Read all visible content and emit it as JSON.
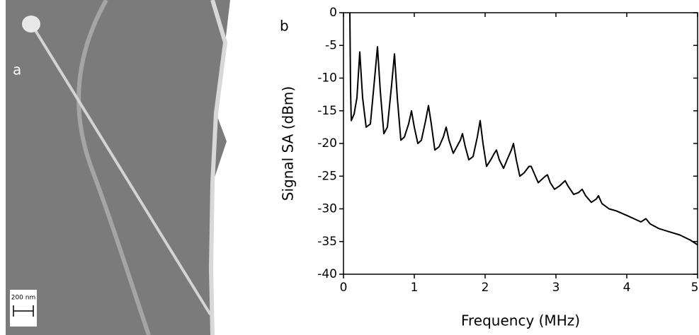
{
  "panel_a": {
    "label": "a",
    "scale_bar": "200 nm"
  },
  "chart_data": {
    "type": "line",
    "panel_label": "b",
    "x_label": "Frequency (MHz)",
    "y_label": "Signal SA (dBm)",
    "xlim": [
      0,
      5
    ],
    "ylim": [
      -40,
      0
    ],
    "xticks": [
      0,
      1,
      2,
      3,
      4,
      5
    ],
    "yticks": [
      0,
      -5,
      -10,
      -15,
      -20,
      -25,
      -30,
      -35,
      -40
    ],
    "color": "#000000",
    "x": [
      0.09,
      0.1,
      0.11,
      0.15,
      0.19,
      0.23,
      0.27,
      0.32,
      0.38,
      0.44,
      0.48,
      0.52,
      0.57,
      0.62,
      0.68,
      0.72,
      0.76,
      0.81,
      0.86,
      0.92,
      0.96,
      1.0,
      1.05,
      1.1,
      1.16,
      1.2,
      1.24,
      1.29,
      1.35,
      1.41,
      1.45,
      1.49,
      1.55,
      1.6,
      1.65,
      1.68,
      1.72,
      1.77,
      1.83,
      1.89,
      1.93,
      1.97,
      2.02,
      2.08,
      2.13,
      2.16,
      2.2,
      2.26,
      2.31,
      2.37,
      2.4,
      2.44,
      2.49,
      2.55,
      2.62,
      2.65,
      2.69,
      2.75,
      2.8,
      2.85,
      2.88,
      2.92,
      2.98,
      3.05,
      3.1,
      3.13,
      3.17,
      3.25,
      3.32,
      3.37,
      3.42,
      3.5,
      3.57,
      3.6,
      3.65,
      3.75,
      3.85,
      4.0,
      4.1,
      4.2,
      4.27,
      4.33,
      4.45,
      4.6,
      4.75,
      4.9,
      5.0
    ],
    "values": [
      0,
      -12,
      -16.5,
      -15.5,
      -13,
      -6,
      -13,
      -17.5,
      -17,
      -10,
      -5.2,
      -12,
      -18.5,
      -17.5,
      -11,
      -6.3,
      -13,
      -19.5,
      -19,
      -17,
      -15,
      -17.5,
      -20,
      -19.5,
      -16.5,
      -14.2,
      -17,
      -21,
      -20.5,
      -19,
      -17.5,
      -19.5,
      -21.5,
      -20.5,
      -19.5,
      -18.5,
      -20.5,
      -22.5,
      -22,
      -19,
      -16.5,
      -20,
      -23.5,
      -22.5,
      -21.5,
      -21,
      -22.5,
      -23.8,
      -22.5,
      -21,
      -20,
      -22.5,
      -25,
      -24.5,
      -23.5,
      -23.5,
      -24.5,
      -26,
      -25.5,
      -25,
      -24.8,
      -26,
      -27,
      -26.5,
      -26,
      -25.7,
      -26.5,
      -27.8,
      -27.5,
      -27,
      -28,
      -29,
      -28.5,
      -28,
      -29.2,
      -30,
      -30.3,
      -31,
      -31.5,
      -32,
      -31.5,
      -32.3,
      -33,
      -33.5,
      -34,
      -34.8,
      -35.5
    ]
  }
}
